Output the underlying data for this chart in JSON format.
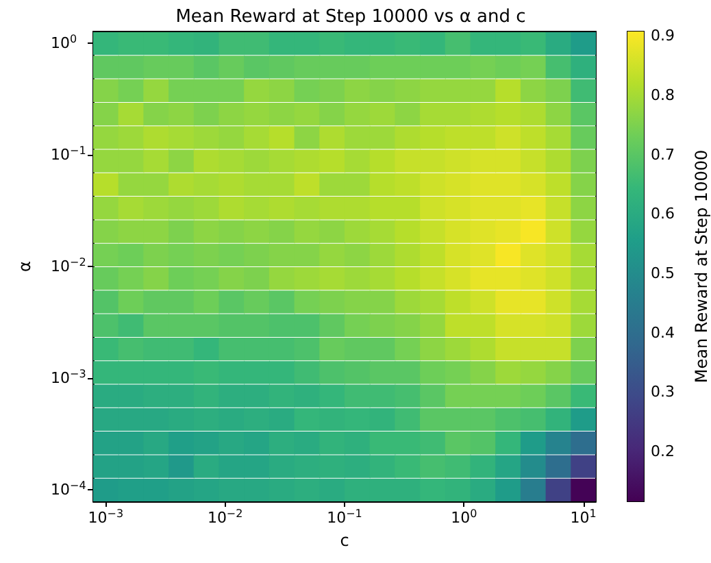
{
  "chart_data": {
    "type": "heatmap",
    "title": "Mean Reward at Step 10000 vs α and c",
    "xlabel": "c",
    "ylabel": "α",
    "clabel": "Mean Reward at Step 10000",
    "x": [
      0.001,
      0.001624,
      0.002637,
      0.004281,
      0.006952,
      0.01129,
      0.01833,
      0.02976,
      0.04833,
      0.07848,
      0.1274,
      0.2069,
      0.336,
      0.5456,
      0.8859,
      1.438,
      2.336,
      3.793,
      6.158,
      10
    ],
    "y": [
      1,
      0.6158,
      0.3793,
      0.2336,
      0.1438,
      0.08859,
      0.05456,
      0.0336,
      0.02069,
      0.01274,
      0.007848,
      0.004833,
      0.002976,
      0.001833,
      0.001129,
      0.0006952,
      0.0004281,
      0.0002637,
      0.0001624,
      0.0001
    ],
    "log": "xy",
    "xlim": [
      0.000785,
      12.74
    ],
    "ylim": [
      7.85e-05,
      1.274
    ],
    "xticks": [
      {
        "value": 0.001,
        "label": "10$^{−3}$"
      },
      {
        "value": 0.01,
        "label": "10$^{−2}$"
      },
      {
        "value": 0.1,
        "label": "10$^{−1}$"
      },
      {
        "value": 1,
        "label": "10$^{0}$"
      },
      {
        "value": 10,
        "label": "10$^{1}$"
      }
    ],
    "yticks": [
      {
        "value": 0.0001,
        "label": "10$^{−4}$"
      },
      {
        "value": 0.001,
        "label": "10$^{−3}$"
      },
      {
        "value": 0.01,
        "label": "10$^{−2}$"
      },
      {
        "value": 0.1,
        "label": "10$^{−1}$"
      },
      {
        "value": 1,
        "label": "10$^{0}$"
      }
    ],
    "clim": [
      0.116,
      0.907
    ],
    "cticks": [
      0.2,
      0.3,
      0.4,
      0.5,
      0.6,
      0.7,
      0.8,
      0.9
    ],
    "cells": [
      [
        0.64,
        0.65,
        0.65,
        0.64,
        0.63,
        0.66,
        0.66,
        0.64,
        0.64,
        0.65,
        0.64,
        0.64,
        0.65,
        0.64,
        0.67,
        0.64,
        0.64,
        0.65,
        0.6,
        0.55
      ],
      [
        0.71,
        0.71,
        0.72,
        0.72,
        0.7,
        0.72,
        0.7,
        0.71,
        0.72,
        0.72,
        0.72,
        0.73,
        0.73,
        0.73,
        0.73,
        0.74,
        0.73,
        0.74,
        0.67,
        0.62
      ],
      [
        0.76,
        0.74,
        0.78,
        0.74,
        0.74,
        0.74,
        0.78,
        0.77,
        0.74,
        0.75,
        0.77,
        0.76,
        0.77,
        0.78,
        0.78,
        0.78,
        0.82,
        0.77,
        0.75,
        0.66
      ],
      [
        0.76,
        0.8,
        0.76,
        0.77,
        0.75,
        0.77,
        0.78,
        0.77,
        0.78,
        0.76,
        0.78,
        0.79,
        0.77,
        0.8,
        0.8,
        0.81,
        0.82,
        0.81,
        0.77,
        0.7
      ],
      [
        0.78,
        0.79,
        0.81,
        0.8,
        0.79,
        0.78,
        0.8,
        0.82,
        0.77,
        0.81,
        0.79,
        0.79,
        0.81,
        0.82,
        0.83,
        0.83,
        0.85,
        0.83,
        0.8,
        0.72
      ],
      [
        0.78,
        0.78,
        0.8,
        0.77,
        0.81,
        0.8,
        0.79,
        0.8,
        0.81,
        0.82,
        0.8,
        0.82,
        0.84,
        0.84,
        0.85,
        0.86,
        0.86,
        0.84,
        0.81,
        0.75
      ],
      [
        0.82,
        0.78,
        0.78,
        0.81,
        0.8,
        0.81,
        0.8,
        0.8,
        0.83,
        0.79,
        0.79,
        0.82,
        0.83,
        0.85,
        0.86,
        0.87,
        0.87,
        0.86,
        0.83,
        0.76
      ],
      [
        0.78,
        0.8,
        0.79,
        0.78,
        0.79,
        0.81,
        0.8,
        0.81,
        0.8,
        0.81,
        0.81,
        0.82,
        0.82,
        0.85,
        0.86,
        0.87,
        0.87,
        0.88,
        0.84,
        0.77
      ],
      [
        0.76,
        0.77,
        0.77,
        0.75,
        0.77,
        0.76,
        0.77,
        0.76,
        0.78,
        0.77,
        0.79,
        0.8,
        0.82,
        0.84,
        0.86,
        0.87,
        0.88,
        0.9,
        0.85,
        0.78
      ],
      [
        0.74,
        0.73,
        0.75,
        0.74,
        0.75,
        0.74,
        0.75,
        0.76,
        0.76,
        0.78,
        0.77,
        0.79,
        0.81,
        0.83,
        0.86,
        0.87,
        0.9,
        0.87,
        0.85,
        0.8
      ],
      [
        0.72,
        0.74,
        0.76,
        0.73,
        0.74,
        0.76,
        0.75,
        0.78,
        0.79,
        0.8,
        0.79,
        0.8,
        0.82,
        0.84,
        0.86,
        0.88,
        0.88,
        0.87,
        0.85,
        0.8
      ],
      [
        0.69,
        0.73,
        0.71,
        0.71,
        0.73,
        0.7,
        0.72,
        0.7,
        0.74,
        0.75,
        0.76,
        0.76,
        0.79,
        0.8,
        0.83,
        0.85,
        0.88,
        0.88,
        0.85,
        0.8
      ],
      [
        0.68,
        0.66,
        0.7,
        0.7,
        0.7,
        0.69,
        0.69,
        0.68,
        0.68,
        0.71,
        0.74,
        0.75,
        0.76,
        0.78,
        0.83,
        0.83,
        0.86,
        0.86,
        0.85,
        0.79
      ],
      [
        0.65,
        0.67,
        0.66,
        0.66,
        0.64,
        0.67,
        0.67,
        0.67,
        0.68,
        0.72,
        0.71,
        0.71,
        0.74,
        0.77,
        0.79,
        0.81,
        0.84,
        0.84,
        0.84,
        0.75
      ],
      [
        0.64,
        0.64,
        0.64,
        0.64,
        0.65,
        0.64,
        0.64,
        0.64,
        0.66,
        0.68,
        0.69,
        0.7,
        0.7,
        0.73,
        0.74,
        0.76,
        0.79,
        0.78,
        0.76,
        0.72
      ],
      [
        0.6,
        0.6,
        0.61,
        0.61,
        0.63,
        0.61,
        0.61,
        0.63,
        0.62,
        0.64,
        0.66,
        0.66,
        0.67,
        0.7,
        0.74,
        0.74,
        0.74,
        0.73,
        0.7,
        0.65
      ],
      [
        0.59,
        0.59,
        0.59,
        0.6,
        0.61,
        0.6,
        0.61,
        0.6,
        0.64,
        0.63,
        0.64,
        0.63,
        0.66,
        0.7,
        0.7,
        0.7,
        0.68,
        0.67,
        0.63,
        0.55
      ],
      [
        0.57,
        0.57,
        0.59,
        0.56,
        0.57,
        0.59,
        0.58,
        0.61,
        0.6,
        0.63,
        0.62,
        0.65,
        0.65,
        0.66,
        0.7,
        0.69,
        0.64,
        0.55,
        0.47,
        0.4
      ],
      [
        0.57,
        0.57,
        0.58,
        0.54,
        0.6,
        0.58,
        0.58,
        0.6,
        0.61,
        0.62,
        0.61,
        0.63,
        0.65,
        0.67,
        0.66,
        0.63,
        0.58,
        0.5,
        0.4,
        0.27
      ],
      [
        0.55,
        0.56,
        0.56,
        0.57,
        0.58,
        0.59,
        0.59,
        0.6,
        0.61,
        0.6,
        0.62,
        0.62,
        0.62,
        0.64,
        0.63,
        0.6,
        0.55,
        0.45,
        0.27,
        0.12
      ]
    ]
  }
}
